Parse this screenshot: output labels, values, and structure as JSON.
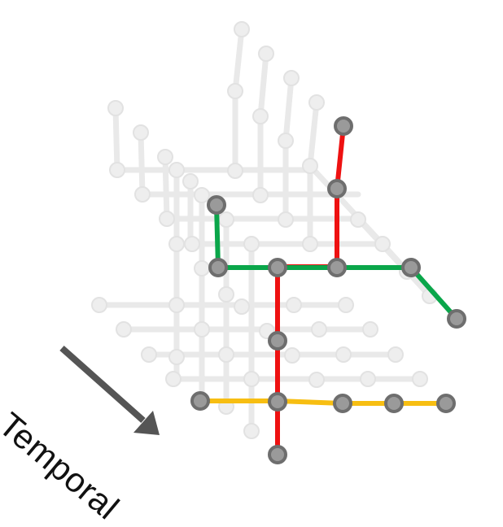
{
  "caption": {
    "temporal_label": "Temporal"
  },
  "colors": {
    "faded_line": "#e9e9e9",
    "faded_node_fill": "#eeeeee",
    "faded_node_stroke": "#e2e2e2",
    "red_route": "#ee1111",
    "green_route": "#0aa64a",
    "yellow_route": "#f7be12",
    "node_fill": "#9a9a9a",
    "node_stroke": "#6e6e6e",
    "arrow": "#555555"
  }
}
